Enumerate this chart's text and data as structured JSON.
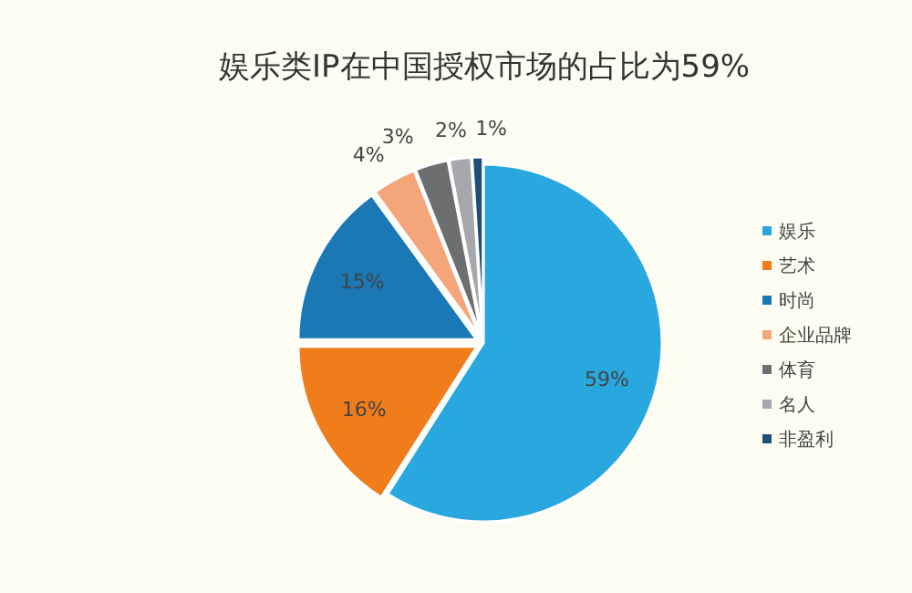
{
  "chart_data": {
    "type": "pie",
    "title": "娱乐类IP在中国授权市场的占比为59%",
    "categories": [
      "娱乐",
      "艺术",
      "时尚",
      "企业品牌",
      "体育",
      "名人",
      "非盈利"
    ],
    "values": [
      59,
      16,
      15,
      4,
      3,
      2,
      1
    ],
    "colors": [
      "#29a8e0",
      "#f07d1a",
      "#1a78b4",
      "#f4a57a",
      "#6d6e70",
      "#a6a8ab",
      "#1f4e79"
    ],
    "value_labels": [
      "59%",
      "16%",
      "15%",
      "4%",
      "3%",
      "2%",
      "1%"
    ],
    "legend": "right"
  }
}
